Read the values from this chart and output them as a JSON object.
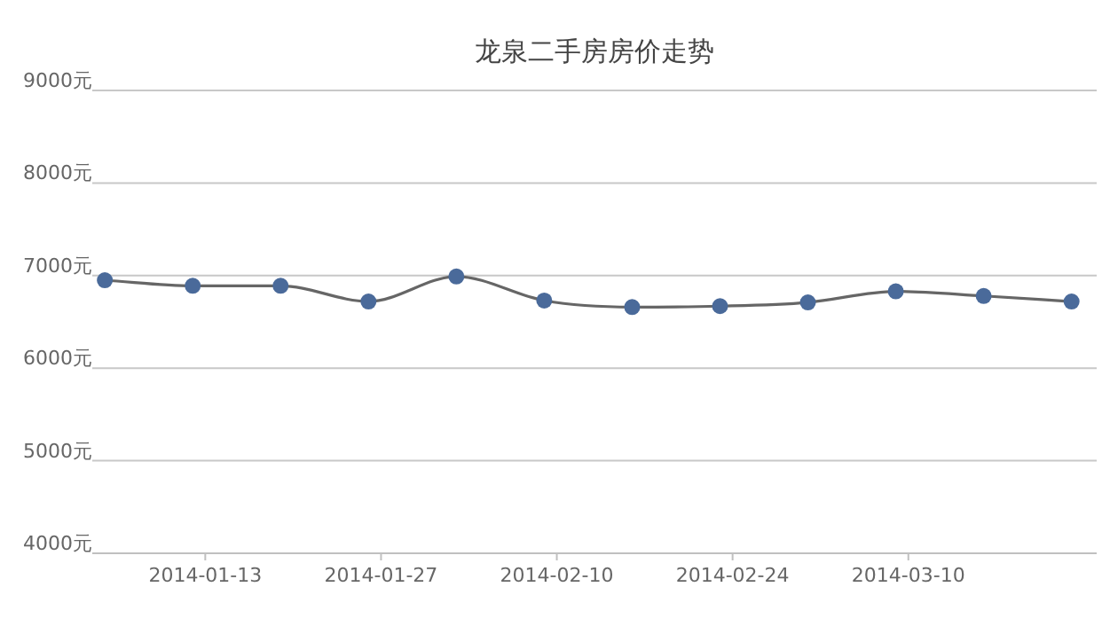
{
  "chart_data": {
    "type": "line",
    "title": "龙泉二手房房价走势",
    "x": [
      "2014-01-05",
      "2014-01-12",
      "2014-01-19",
      "2014-01-26",
      "2014-02-02",
      "2014-02-09",
      "2014-02-16",
      "2014-02-23",
      "2014-03-02",
      "2014-03-09",
      "2014-03-16",
      "2014-03-23"
    ],
    "series": [
      {
        "color": "#4a6a9a",
        "values": [
          6950,
          6890,
          6890,
          6720,
          6990,
          6730,
          6660,
          6670,
          6710,
          6830,
          6780,
          6720
        ]
      }
    ],
    "xlim": [
      "2014-01-04",
      "2014-03-25"
    ],
    "xticks": [
      "2014-01-13",
      "2014-01-27",
      "2014-02-10",
      "2014-02-24",
      "2014-03-10"
    ],
    "ylim": [
      4000,
      9000
    ],
    "yticks": [
      {
        "value": 4000,
        "label": "4000元"
      },
      {
        "value": 5000,
        "label": "5000元"
      },
      {
        "value": 6000,
        "label": "6000元"
      },
      {
        "value": 7000,
        "label": "7000元"
      },
      {
        "value": 8000,
        "label": "8000元"
      },
      {
        "value": 9000,
        "label": "9000元"
      }
    ],
    "grid": "y",
    "marker": "circle",
    "line_style": "solid"
  }
}
